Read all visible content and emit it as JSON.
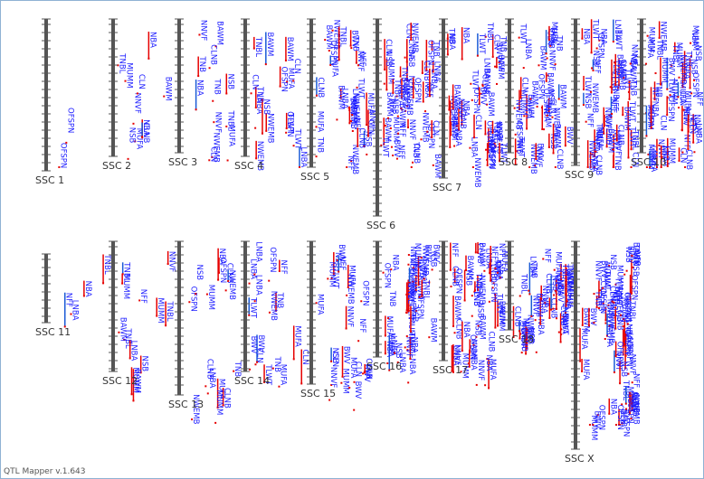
{
  "app": {
    "footer": "QTL Mapper v.1.643"
  },
  "colors": {
    "chromosome": "#555555",
    "qtl_label": "#1a1aff",
    "qtl_marker": "#e60000",
    "qtl_marker_alt": "#1a5ad6",
    "background": "#ffffff"
  },
  "chart_data": {
    "type": "chromosome-map",
    "chromosomes": [
      {
        "name": "SSC 1",
        "row": 1
      },
      {
        "name": "SSC 2",
        "row": 1
      },
      {
        "name": "SSC 3",
        "row": 1
      },
      {
        "name": "SSC 4",
        "row": 1
      },
      {
        "name": "SSC 5",
        "row": 1
      },
      {
        "name": "SSC 6",
        "row": 1
      },
      {
        "name": "SSC 7",
        "row": 1
      },
      {
        "name": "SSC 8",
        "row": 1
      },
      {
        "name": "SSC 9",
        "row": 1
      },
      {
        "name": "SSC 10",
        "row": 1
      },
      {
        "name": "SSC 11",
        "row": 2
      },
      {
        "name": "SSC 12",
        "row": 2
      },
      {
        "name": "SSC 13",
        "row": 2
      },
      {
        "name": "SSC 14",
        "row": 2
      },
      {
        "name": "SSC 15",
        "row": 2
      },
      {
        "name": "SSC 16",
        "row": 2
      },
      {
        "name": "SSC 17",
        "row": 2
      },
      {
        "name": "SSC 18",
        "row": 2
      },
      {
        "name": "SSC X",
        "row": 2
      }
    ],
    "qtl_traits": [
      "TNB",
      "NBA",
      "MUMM",
      "NSB",
      "CLN",
      "LNBA",
      "TNBL",
      "NWEMB",
      "TLWT",
      "BWV",
      "OFSPN",
      "MUFA",
      "NFF",
      "NNVF",
      "BAWM",
      "CLNB"
    ]
  }
}
